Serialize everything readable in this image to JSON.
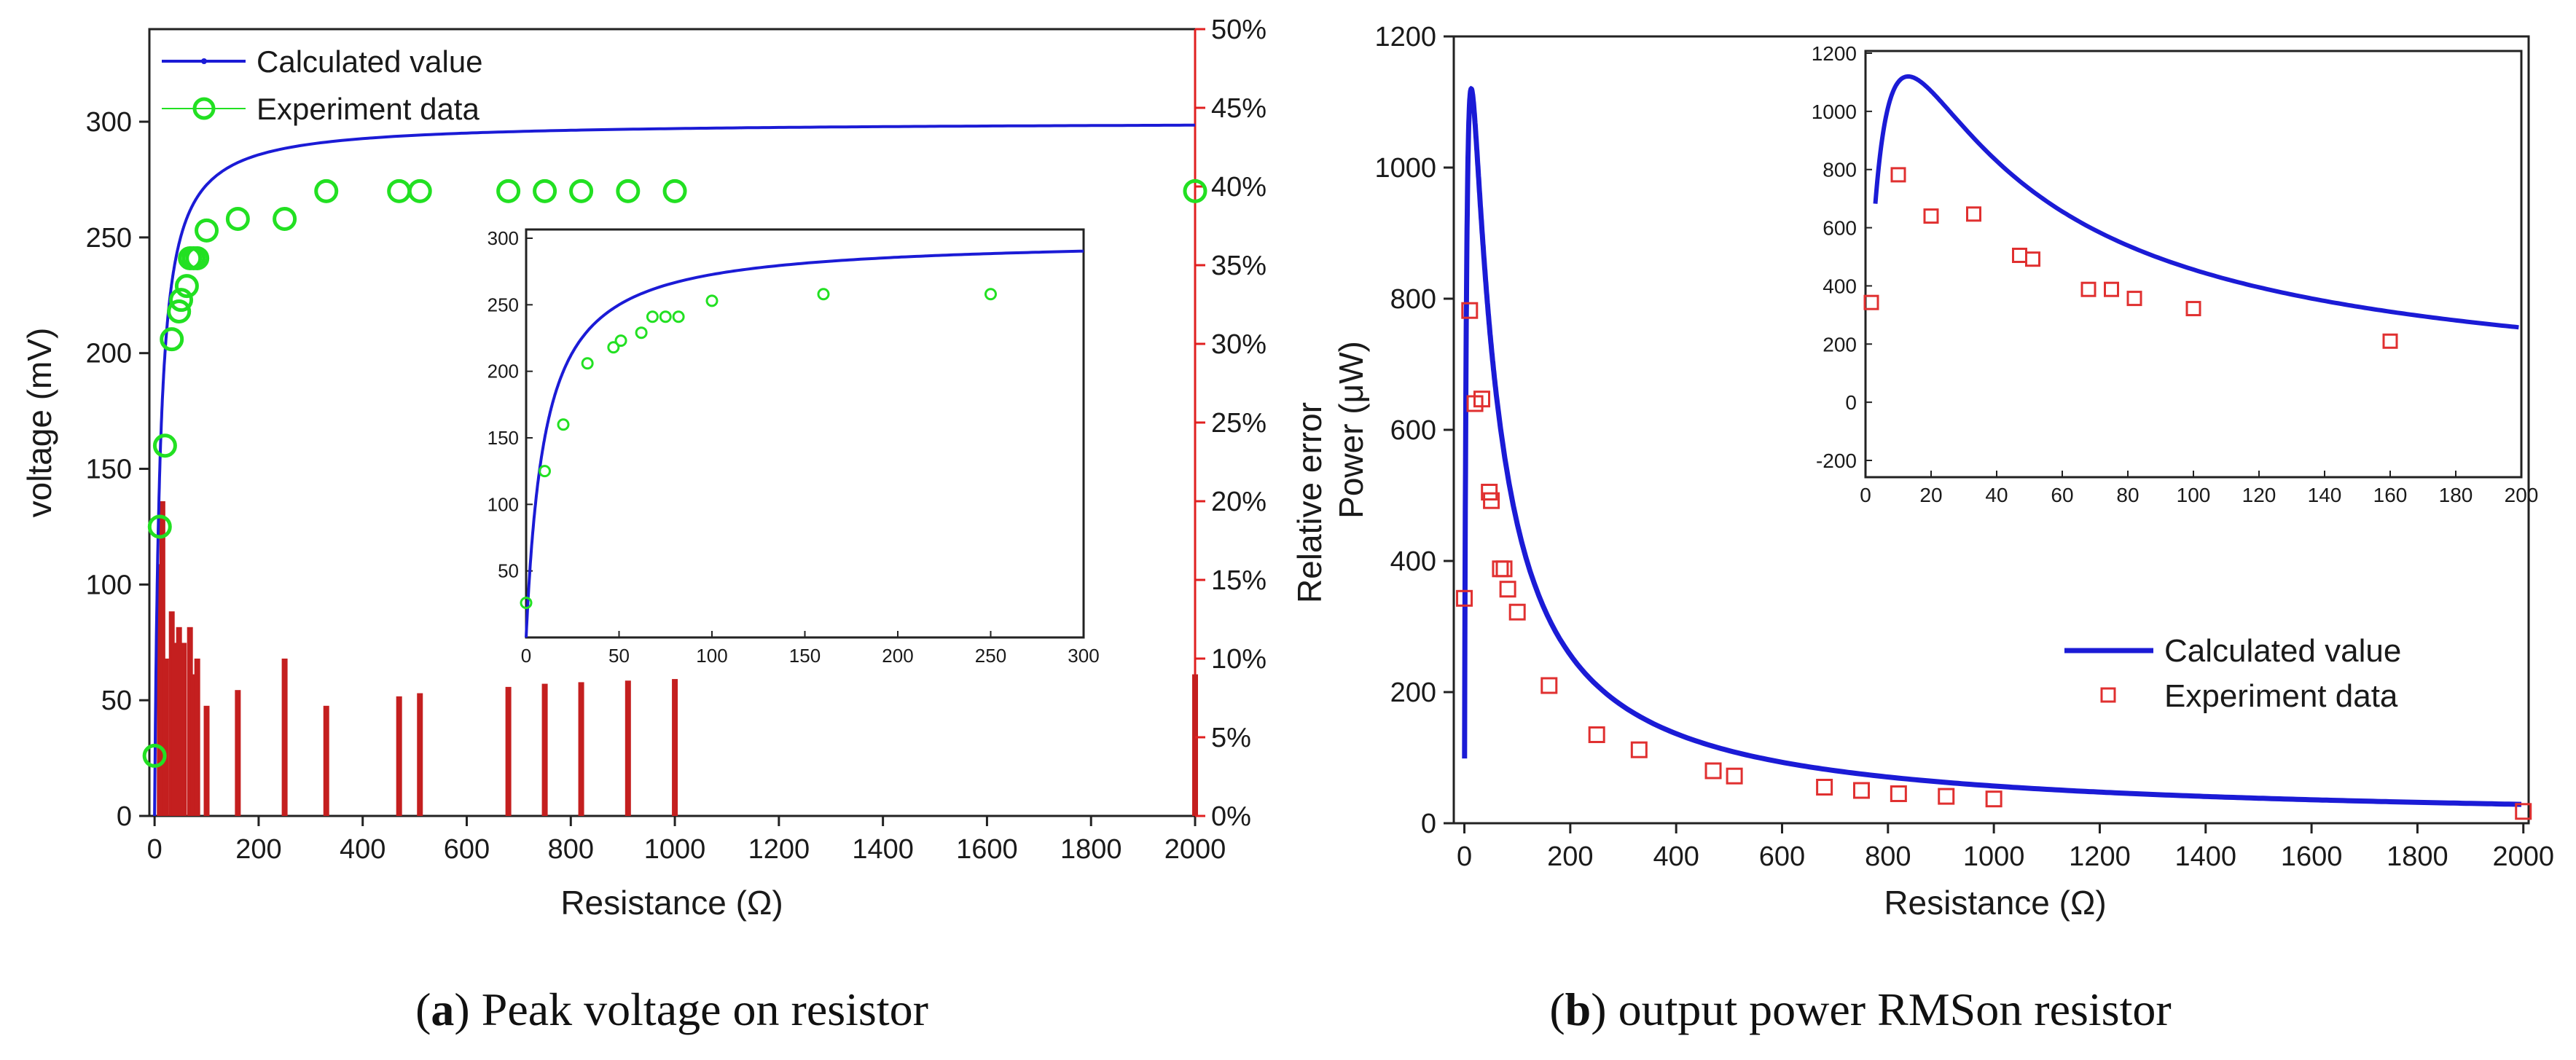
{
  "chart_data": [
    {
      "id": "a",
      "type": "line+scatter+bar",
      "caption_letter": "a",
      "caption_text": "Peak voltage on resistor",
      "xlabel": "Resistance (Ω)",
      "ylabel": "voltage (mV)",
      "y2label": "Relative error",
      "xlim": [
        -10,
        2000
      ],
      "ylim": [
        0,
        340
      ],
      "y2lim": [
        0,
        50
      ],
      "xticks": [
        0,
        200,
        400,
        600,
        800,
        1000,
        1200,
        1400,
        1600,
        1800,
        2000
      ],
      "yticks": [
        0,
        50,
        100,
        150,
        200,
        250,
        300
      ],
      "y2ticks": [
        "0%",
        "5%",
        "10%",
        "15%",
        "20%",
        "25%",
        "30%",
        "35%",
        "40%",
        "45%",
        "50%"
      ],
      "legend": [
        "Calculated value",
        "Experiment data"
      ],
      "series_calculated": {
        "name": "Calculated value",
        "vinf": 300,
        "k": 10,
        "color": "#1b1bd6"
      },
      "experiment": {
        "name": "Experiment data",
        "color": "#22e022",
        "x": [
          0,
          10,
          20,
          33,
          47,
          51,
          62,
          68,
          75,
          82,
          100,
          160,
          250,
          330,
          470,
          510,
          680,
          750,
          820,
          910,
          1000,
          2000
        ],
        "y": [
          26,
          125,
          160,
          206,
          218,
          223,
          229,
          241,
          241,
          241,
          253,
          258,
          258,
          270,
          270,
          270,
          270,
          270,
          270,
          270,
          270,
          270
        ]
      },
      "relative_error": {
        "color": "#c41f1f",
        "x": [
          10,
          15,
          22,
          33,
          39,
          47,
          56,
          68,
          75,
          82,
          100,
          160,
          250,
          330,
          470,
          510,
          680,
          750,
          820,
          910,
          1000,
          2000
        ],
        "values_percent": [
          16,
          20,
          10,
          13,
          11,
          12,
          11,
          12,
          9,
          10,
          7,
          8,
          10,
          7,
          7.6,
          7.8,
          8.2,
          8.4,
          8.5,
          8.6,
          8.7,
          9
        ]
      },
      "inset": {
        "xlim": [
          0,
          300
        ],
        "ylim": [
          0,
          300
        ],
        "xticks": [
          0,
          50,
          100,
          150,
          200,
          250,
          300
        ],
        "yticks": [
          50,
          100,
          150,
          200,
          250,
          300
        ],
        "x": [
          0,
          10,
          20,
          33,
          47,
          51,
          62,
          68,
          75,
          82,
          100,
          160,
          250
        ],
        "y": [
          26,
          125,
          160,
          206,
          218,
          223,
          229,
          241,
          241,
          241,
          253,
          258,
          258
        ]
      }
    },
    {
      "id": "b",
      "type": "line+scatter",
      "caption_letter": "b",
      "caption_text": "output power RMSon resistor",
      "xlabel": "Resistance (Ω)",
      "ylabel": "Power (μW)",
      "xlim": [
        -20,
        2010
      ],
      "ylim": [
        0,
        1200
      ],
      "xticks": [
        0,
        200,
        400,
        600,
        800,
        1000,
        1200,
        1400,
        1600,
        1800,
        2000
      ],
      "yticks": [
        0,
        200,
        400,
        600,
        800,
        1000,
        1200
      ],
      "legend": [
        "Calculated value",
        "Experiment data"
      ],
      "series_calculated": {
        "name": "Calculated value",
        "peak_at": 13,
        "peak_value": 1120,
        "color": "#1b1bd6"
      },
      "experiment": {
        "name": "Experiment data",
        "color": "#e03030",
        "x": [
          0,
          10,
          20,
          33,
          47,
          51,
          68,
          75,
          82,
          100,
          160,
          250,
          330,
          470,
          510,
          680,
          750,
          820,
          910,
          1000,
          2000
        ],
        "y": [
          343,
          782,
          640,
          647,
          505,
          492,
          388,
          388,
          357,
          322,
          210,
          135,
          112,
          80,
          72,
          55,
          50,
          45,
          41,
          37,
          18
        ]
      },
      "inset": {
        "xlim": [
          0,
          200
        ],
        "ylim": [
          -250,
          1230
        ],
        "xticks": [
          0,
          20,
          40,
          60,
          80,
          100,
          120,
          140,
          160,
          180,
          200
        ],
        "yticks": [
          -200,
          0,
          200,
          400,
          600,
          800,
          1000,
          1200
        ],
        "x": [
          0,
          10,
          20,
          33,
          47,
          51,
          68,
          75,
          82,
          100,
          160
        ],
        "y": [
          343,
          782,
          640,
          647,
          505,
          492,
          388,
          388,
          357,
          322,
          210
        ]
      }
    }
  ]
}
